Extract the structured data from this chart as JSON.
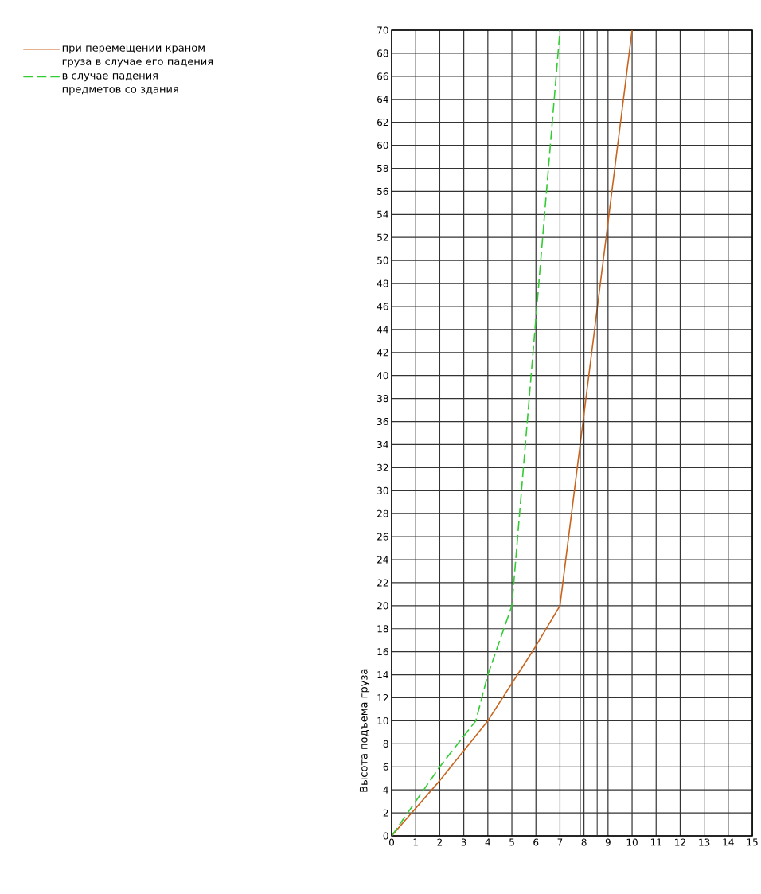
{
  "chart_data": {
    "type": "line",
    "ylabel": "Высота подъема груза",
    "xlim": [
      0,
      15
    ],
    "xticks": [
      0,
      1,
      2,
      3,
      4,
      5,
      6,
      7,
      8,
      9,
      10,
      11,
      12,
      13,
      14,
      15
    ],
    "ylim": [
      0,
      70
    ],
    "yticks": [
      0,
      2,
      4,
      6,
      8,
      10,
      12,
      14,
      16,
      18,
      20,
      22,
      24,
      26,
      28,
      30,
      32,
      34,
      36,
      38,
      40,
      42,
      44,
      46,
      48,
      50,
      52,
      54,
      56,
      58,
      60,
      62,
      64,
      66,
      68,
      70
    ],
    "grid": true,
    "legend": "top left",
    "marker": "none",
    "ref_lines": [
      {
        "axis": "x",
        "value": 7.85,
        "color": "#333333"
      },
      {
        "axis": "x",
        "value": 8.55,
        "color": "#333333"
      }
    ],
    "series": [
      {
        "name": "при перемещении краном груза в случае его падения",
        "color": "#c8641e",
        "line_style": "solid",
        "x": [
          0,
          2,
          4,
          6,
          7,
          10
        ],
        "values": [
          0,
          4.8,
          10,
          16.5,
          20,
          70
        ]
      },
      {
        "name": "в случае падения предметов со здания",
        "color": "#33cc33",
        "line_style": "dashed",
        "x": [
          0,
          2,
          3.5,
          4,
          5,
          7
        ],
        "values": [
          0,
          6,
          10,
          14,
          20,
          70
        ]
      }
    ]
  }
}
